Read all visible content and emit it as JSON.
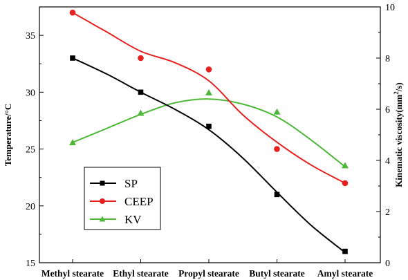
{
  "chart_data": {
    "type": "line",
    "categories": [
      "Methyl stearate",
      "Ethyl stearate",
      "Propyl stearate",
      "Butyl stearate",
      "Amyl stearate"
    ],
    "left_axis": {
      "label": "Temperature/°C",
      "range": [
        15,
        37.5
      ],
      "ticks": [
        "15",
        "20",
        "25",
        "30",
        "35"
      ]
    },
    "right_axis": {
      "label_main": "Kinematic viscosity(mm",
      "label_sup": "2",
      "label_end": "/s)",
      "range": [
        0,
        10
      ],
      "ticks": [
        "0",
        "2",
        "4",
        "6",
        "8",
        "10"
      ]
    },
    "series": [
      {
        "name": "SP",
        "axis": "left",
        "color": "#000000",
        "marker": "square",
        "values": [
          33,
          30,
          27,
          21,
          16
        ],
        "curve": [
          [
            0,
            33
          ],
          [
            0.5,
            31.6
          ],
          [
            1,
            30
          ],
          [
            1.5,
            28.5
          ],
          [
            2,
            26.7
          ],
          [
            2.5,
            24.2
          ],
          [
            3,
            21.2
          ],
          [
            3.5,
            18.3
          ],
          [
            4,
            15.9
          ]
        ]
      },
      {
        "name": "CEEP",
        "axis": "left",
        "color": "#e8201e",
        "marker": "circle",
        "values": [
          37,
          33,
          32,
          25,
          22
        ],
        "curve": [
          [
            0,
            37
          ],
          [
            0.5,
            35.3
          ],
          [
            1,
            33.6
          ],
          [
            1.5,
            32.6
          ],
          [
            2,
            31
          ],
          [
            2.5,
            28
          ],
          [
            3,
            25.6
          ],
          [
            3.5,
            23.6
          ],
          [
            4,
            22
          ]
        ]
      },
      {
        "name": "KV",
        "axis": "right",
        "color": "#4db838",
        "marker": "triangle",
        "values": [
          4.7,
          5.85,
          6.65,
          5.9,
          3.8
        ],
        "curve": [
          [
            0,
            4.7
          ],
          [
            0.5,
            5.25
          ],
          [
            1,
            5.8
          ],
          [
            1.5,
            6.25
          ],
          [
            2,
            6.4
          ],
          [
            2.5,
            6.2
          ],
          [
            3,
            5.7
          ],
          [
            3.5,
            4.8
          ],
          [
            4,
            3.75
          ]
        ]
      }
    ],
    "legend": {
      "position": "bottom-left",
      "items": [
        "SP",
        "CEEP",
        "KV"
      ]
    },
    "grid": false
  }
}
